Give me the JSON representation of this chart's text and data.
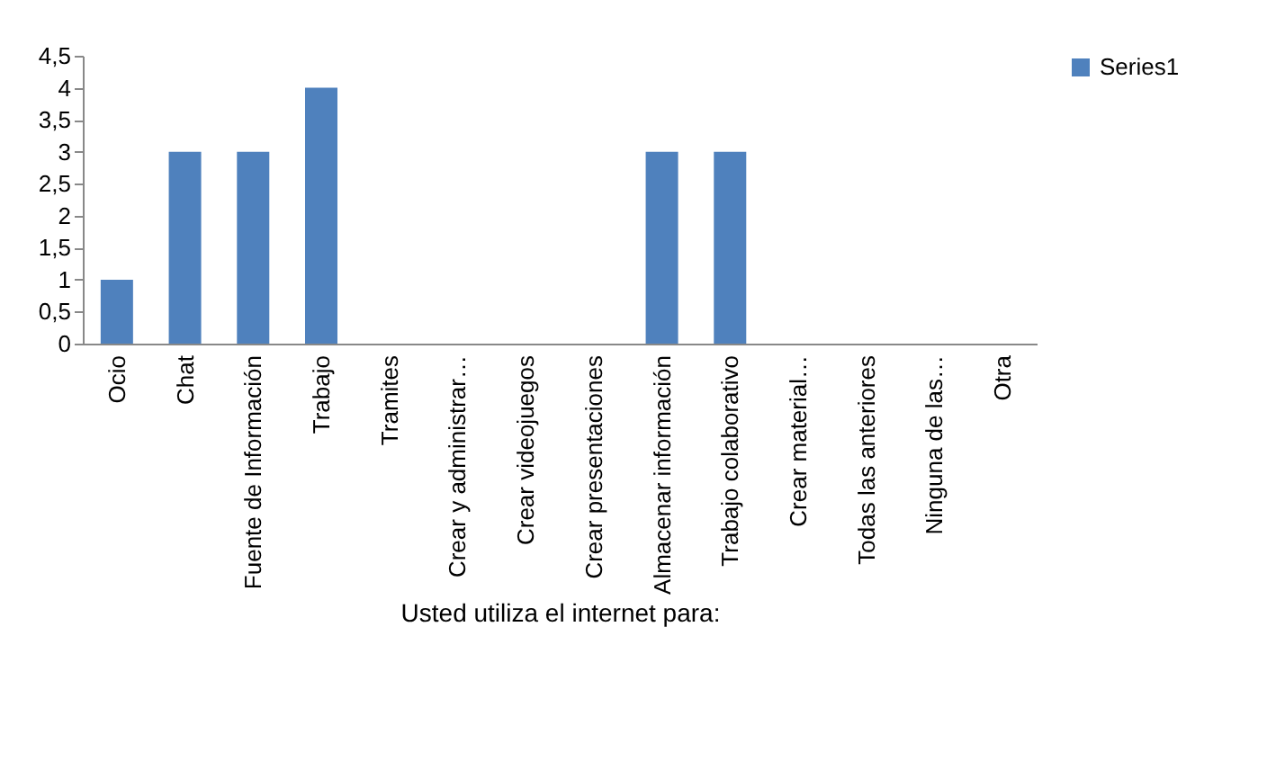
{
  "chart_data": {
    "type": "bar",
    "xlabel": "Usted utiliza el internet para:",
    "categories": [
      "Ocio",
      "Chat",
      "Fuente de Información",
      "Trabajo",
      "Tramites",
      "Crear y administrar…",
      "Crear videojuegos",
      "Crear presentaciones",
      "Almacenar información",
      "Trabajo colaborativo",
      "Crear material…",
      "Todas las anteriores",
      "Ninguna de las…",
      "Otra"
    ],
    "series": [
      {
        "name": "Series1",
        "color": "#4f81bd",
        "values": [
          1,
          3,
          3,
          4,
          0,
          0,
          0,
          0,
          3,
          3,
          0,
          0,
          0,
          0
        ]
      }
    ],
    "ylim": [
      0,
      4.5
    ],
    "yticks": [
      0,
      {
        "value": 0.5,
        "label": "0,5"
      },
      1,
      {
        "value": 1.5,
        "label": "1,5"
      },
      2,
      {
        "value": 2.5,
        "label": "2,5"
      },
      3,
      {
        "value": 3.5,
        "label": "3,5"
      },
      4,
      {
        "value": 4.5,
        "label": "4,5"
      }
    ],
    "grid": false,
    "legend": "right"
  }
}
